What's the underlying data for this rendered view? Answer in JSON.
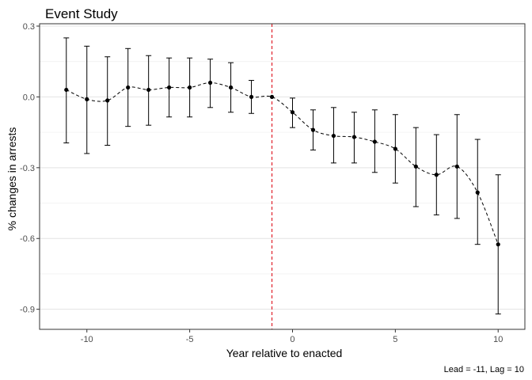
{
  "chart_data": {
    "type": "line",
    "title": "Event Study",
    "xlabel": "Year relative to enacted",
    "ylabel": "% changes in arrests",
    "caption": "Lead = -11, Lag = 10",
    "xlim": [
      -12.3,
      11.3
    ],
    "ylim": [
      -0.985,
      0.31
    ],
    "x_ticks": [
      -10,
      -5,
      0,
      5,
      10
    ],
    "x_tick_labels": [
      "-10",
      "-5",
      "0",
      "5",
      "10"
    ],
    "y_ticks": [
      0.3,
      0.0,
      -0.3,
      -0.6,
      -0.9
    ],
    "y_tick_labels": [
      "0.3",
      "0.0",
      "-0.3",
      "-0.6",
      "-0.9"
    ],
    "y_minor_ticks": [
      0.15,
      -0.15,
      -0.45,
      -0.75
    ],
    "grid": true,
    "reference_line": {
      "x": -1,
      "color": "#e0202a",
      "style": "dashed"
    },
    "line_style": "dashed",
    "marker_color": "#000000",
    "series": [
      {
        "x": [
          -11,
          -10,
          -9,
          -8,
          -7,
          -6,
          -5,
          -4,
          -3,
          -2,
          -1,
          0,
          1,
          2,
          3,
          4,
          5,
          6,
          7,
          8,
          9,
          10
        ],
        "y": [
          0.03,
          -0.01,
          -0.015,
          0.04,
          0.03,
          0.04,
          0.04,
          0.06,
          0.04,
          0.0,
          0.0,
          -0.065,
          -0.14,
          -0.165,
          -0.17,
          -0.19,
          -0.22,
          -0.295,
          -0.33,
          -0.295,
          -0.405,
          -0.625
        ],
        "lower": [
          -0.195,
          -0.24,
          -0.205,
          -0.125,
          -0.12,
          -0.085,
          -0.085,
          -0.045,
          -0.065,
          -0.07,
          0.0,
          -0.13,
          -0.225,
          -0.28,
          -0.28,
          -0.32,
          -0.365,
          -0.465,
          -0.5,
          -0.515,
          -0.625,
          -0.92
        ],
        "upper": [
          0.25,
          0.215,
          0.17,
          0.205,
          0.175,
          0.165,
          0.165,
          0.16,
          0.145,
          0.07,
          0.0,
          -0.005,
          -0.055,
          -0.045,
          -0.065,
          -0.055,
          -0.075,
          -0.13,
          -0.16,
          -0.075,
          -0.18,
          -0.33
        ]
      }
    ]
  }
}
